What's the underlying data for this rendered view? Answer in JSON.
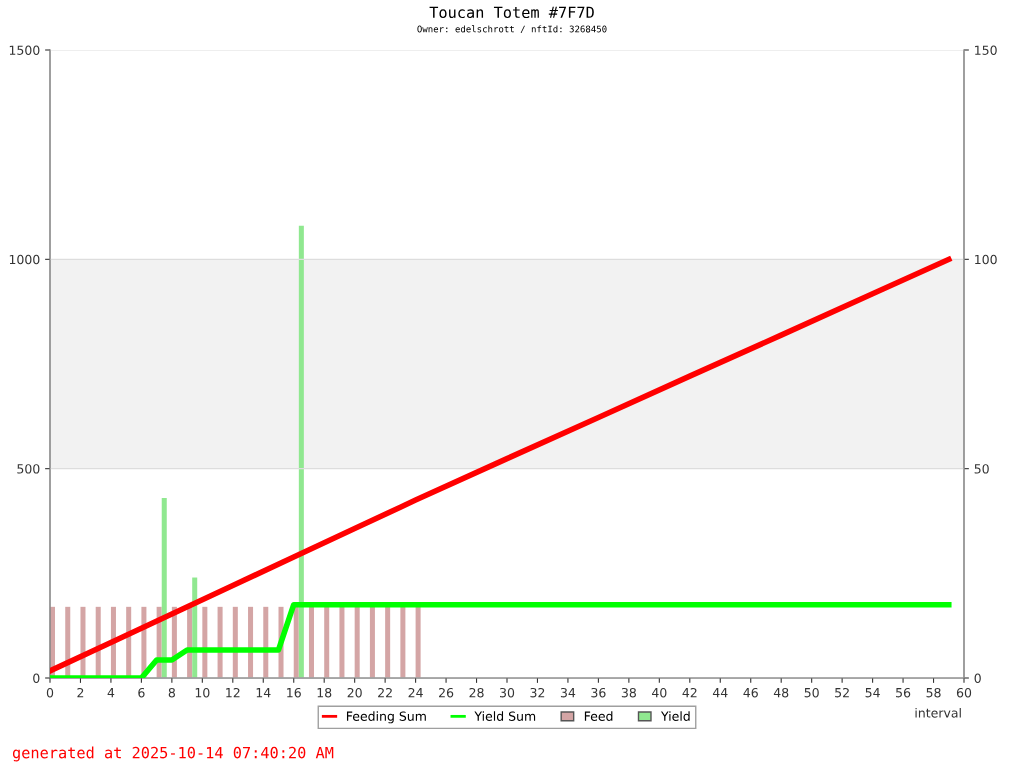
{
  "chart_data": {
    "type": "line",
    "title": "Toucan Totem #7F7D",
    "subtitle": "Owner: edelschrott / nftId: 3268450",
    "xlabel": "interval",
    "annotations": [
      "generated at 2025-10-14 07:40:20 AM"
    ],
    "xlim": [
      0,
      60
    ],
    "xticks": [
      0,
      2,
      4,
      6,
      8,
      10,
      12,
      14,
      16,
      18,
      20,
      22,
      24,
      26,
      28,
      30,
      32,
      34,
      36,
      38,
      40,
      42,
      44,
      46,
      48,
      50,
      52,
      54,
      56,
      58,
      60
    ],
    "ylim": [
      0,
      1500
    ],
    "yticks": [
      0,
      500,
      1000,
      1500
    ],
    "y2lim": [
      0,
      150
    ],
    "y2ticks": [
      0,
      50,
      100,
      150
    ],
    "grid": "y",
    "legend": "bottom",
    "bands": [
      {
        "axis": "y",
        "from": 500,
        "to": 1000,
        "color": "#f2f2f2"
      }
    ],
    "series": [
      {
        "name": "Feed",
        "type": "bar",
        "axis": "y2",
        "color": "#d4a5a5",
        "x": [
          0,
          1,
          2,
          3,
          4,
          5,
          6,
          7,
          8,
          9,
          10,
          11,
          12,
          13,
          14,
          15,
          16,
          17,
          18,
          19,
          20,
          21,
          22,
          23,
          24
        ],
        "values": [
          17,
          17,
          17,
          17,
          17,
          17,
          17,
          17,
          17,
          17,
          17,
          17,
          17,
          17,
          17,
          17,
          17,
          17,
          17,
          17,
          17,
          17,
          17,
          17,
          17
        ]
      },
      {
        "name": "Yield",
        "type": "bar",
        "axis": "y2",
        "color": "#90e890",
        "x": [
          7.5,
          9.5,
          16.5
        ],
        "values": [
          43,
          24,
          108
        ]
      },
      {
        "name": "Feeding Sum",
        "color": "#ff0000",
        "x": [
          0,
          4,
          8,
          12,
          16,
          20,
          23,
          24,
          30,
          36,
          42,
          48,
          54,
          59
        ],
        "values": [
          17,
          85,
          153,
          221,
          289,
          357,
          408,
          425,
          524,
          622,
          721,
          819,
          918,
          1000
        ]
      },
      {
        "name": "Yield Sum",
        "color": "#00ff00",
        "x": [
          0,
          6,
          7,
          8,
          9,
          15,
          16,
          59
        ],
        "values": [
          0,
          0,
          43,
          43,
          67,
          67,
          175,
          175
        ]
      }
    ]
  }
}
